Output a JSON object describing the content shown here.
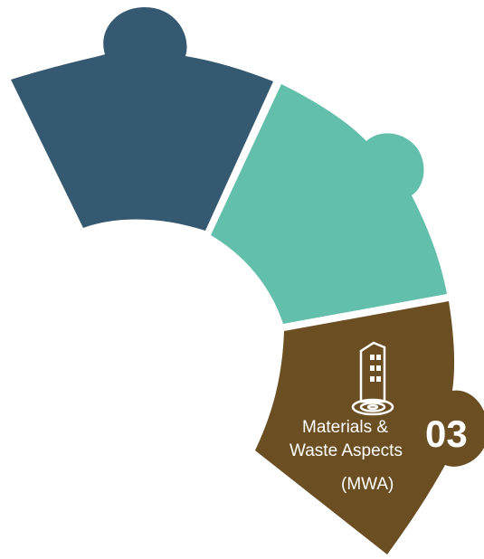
{
  "colors": {
    "segment_top": "#355971",
    "segment_middle": "#62bfab",
    "segment_bottom": "#6b4f23",
    "text": "#ffffff",
    "background": "#ffffff"
  },
  "segment_bottom": {
    "number": "03",
    "label_line1": "Materials &",
    "label_line2": "Waste Aspects",
    "label_line3": "(MWA)",
    "icon": "building-on-log-icon"
  }
}
